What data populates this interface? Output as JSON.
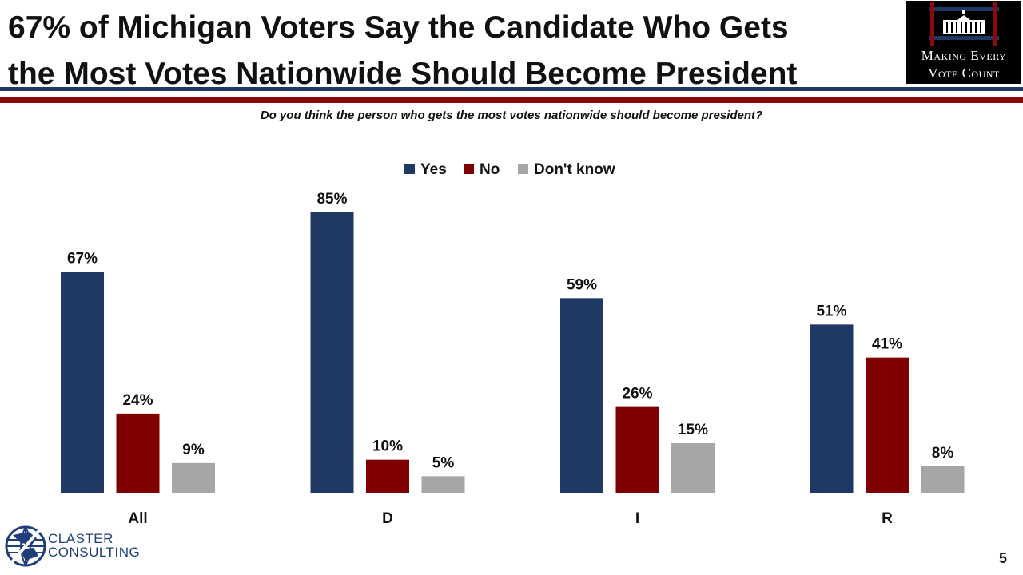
{
  "title": {
    "line1": "67% of Michigan Voters Say the Candidate Who Gets",
    "line2": "the Most Votes Nationwide Should Become President"
  },
  "logo": {
    "line1": "Making Every",
    "line2": "Vote Count"
  },
  "question": "Do you think the person who gets the most votes nationwide should become president?",
  "chart_data": {
    "type": "bar",
    "title": "",
    "xlabel": "",
    "ylabel": "",
    "ylim": [
      0,
      100
    ],
    "grid": false,
    "legend_position": "top-center",
    "categories": [
      "All",
      "D",
      "I",
      "R"
    ],
    "series": [
      {
        "name": "Yes",
        "color": "#1f3864",
        "values": [
          67,
          85,
          59,
          51
        ],
        "labels": [
          "67%",
          "85%",
          "59%",
          "51%"
        ]
      },
      {
        "name": "No",
        "color": "#7f0000",
        "values": [
          24,
          10,
          26,
          41
        ],
        "labels": [
          "24%",
          "10%",
          "26%",
          "41%"
        ]
      },
      {
        "name": "Don't know",
        "color": "#a6a6a6",
        "values": [
          9,
          5,
          15,
          8
        ],
        "labels": [
          "9%",
          "5%",
          "15%",
          "8%"
        ]
      }
    ]
  },
  "footer": {
    "brand_line1": "CLASTER",
    "brand_line2": "CONSULTING",
    "page_number": "5"
  }
}
